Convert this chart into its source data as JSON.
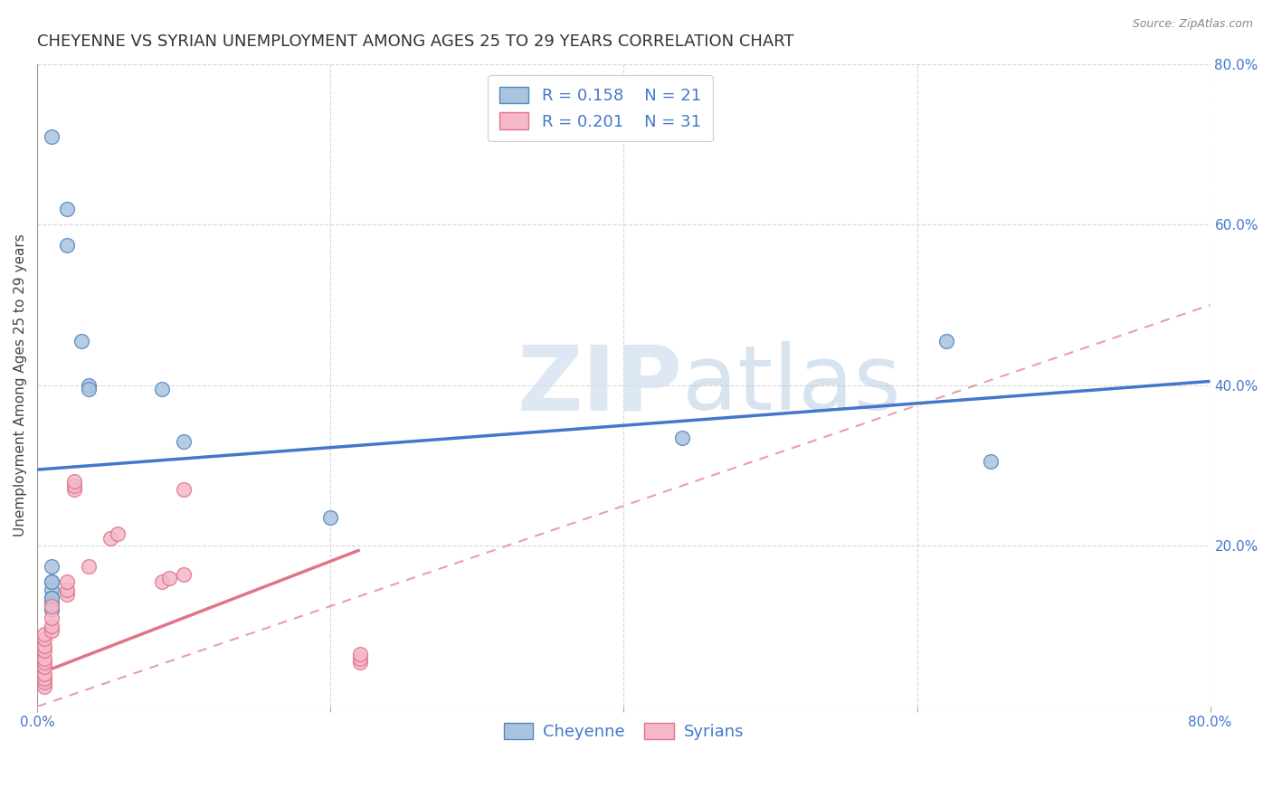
{
  "title": "CHEYENNE VS SYRIAN UNEMPLOYMENT AMONG AGES 25 TO 29 YEARS CORRELATION CHART",
  "source": "Source: ZipAtlas.com",
  "ylabel": "Unemployment Among Ages 25 to 29 years",
  "xlim": [
    0.0,
    0.8
  ],
  "ylim": [
    0.0,
    0.8
  ],
  "background_color": "#ffffff",
  "grid_color": "#d8d8d8",
  "cheyenne_color": "#aac4e0",
  "cheyenne_edge_color": "#5588bb",
  "syrian_color": "#f4b8c8",
  "syrian_edge_color": "#e0758a",
  "legend_text_color": "#4477cc",
  "blue_line_color": "#4477cc",
  "pink_line_color": "#e0758a",
  "cheyenne_R": "0.158",
  "cheyenne_N": "21",
  "syrian_R": "0.201",
  "syrian_N": "31",
  "cheyenne_x": [
    0.01,
    0.02,
    0.02,
    0.03,
    0.035,
    0.035,
    0.01,
    0.01,
    0.01,
    0.01,
    0.01,
    0.085,
    0.1,
    0.44,
    0.62,
    0.65,
    0.2,
    0.01,
    0.01,
    0.01,
    0.01
  ],
  "cheyenne_y": [
    0.71,
    0.62,
    0.575,
    0.455,
    0.4,
    0.395,
    0.155,
    0.145,
    0.135,
    0.128,
    0.122,
    0.395,
    0.33,
    0.335,
    0.455,
    0.305,
    0.235,
    0.175,
    0.155,
    0.135,
    0.12
  ],
  "syrian_x": [
    0.005,
    0.005,
    0.005,
    0.005,
    0.005,
    0.005,
    0.005,
    0.005,
    0.005,
    0.005,
    0.005,
    0.01,
    0.01,
    0.01,
    0.01,
    0.02,
    0.02,
    0.02,
    0.025,
    0.025,
    0.025,
    0.035,
    0.05,
    0.055,
    0.085,
    0.09,
    0.1,
    0.1,
    0.22,
    0.22,
    0.22
  ],
  "syrian_y": [
    0.025,
    0.03,
    0.035,
    0.04,
    0.05,
    0.055,
    0.06,
    0.07,
    0.075,
    0.085,
    0.09,
    0.095,
    0.1,
    0.11,
    0.125,
    0.14,
    0.145,
    0.155,
    0.27,
    0.275,
    0.28,
    0.175,
    0.21,
    0.215,
    0.155,
    0.16,
    0.27,
    0.165,
    0.055,
    0.06,
    0.065
  ],
  "cheyenne_line_x": [
    0.0,
    0.8
  ],
  "cheyenne_line_y": [
    0.295,
    0.405
  ],
  "syrian_solid_line_x": [
    0.0,
    0.22
  ],
  "syrian_solid_line_y": [
    0.04,
    0.195
  ],
  "syrian_dashed_line_x": [
    0.0,
    0.8
  ],
  "syrian_dashed_line_y": [
    0.0,
    0.5
  ],
  "watermark_zip": "ZIP",
  "watermark_atlas": "atlas",
  "marker_size": 130,
  "title_fontsize": 13,
  "axis_label_fontsize": 11,
  "tick_fontsize": 11,
  "legend_fontsize": 13
}
